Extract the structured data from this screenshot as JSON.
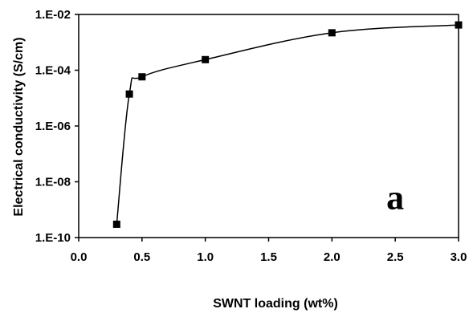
{
  "chart_data": {
    "type": "line",
    "title": "",
    "xlabel": "SWNT loading (wt%)",
    "ylabel": "Electrical conductivity (S/cm)",
    "xlim": [
      0.0,
      3.0
    ],
    "ylim": [
      1e-10,
      0.01
    ],
    "yscale": "log",
    "grid": false,
    "legend": "none",
    "xticks": [
      {
        "value": 0.0,
        "label": "0.0"
      },
      {
        "value": 0.5,
        "label": "0.5"
      },
      {
        "value": 1.0,
        "label": "1.0"
      },
      {
        "value": 1.5,
        "label": "1.5"
      },
      {
        "value": 2.0,
        "label": "2.0"
      },
      {
        "value": 2.5,
        "label": "2.5"
      },
      {
        "value": 3.0,
        "label": "3.0"
      }
    ],
    "yticks": [
      {
        "value": 1e-10,
        "label": "1.E-10"
      },
      {
        "value": 1e-08,
        "label": "1.E-08"
      },
      {
        "value": 1e-06,
        "label": "1.E-06"
      },
      {
        "value": 0.0001,
        "label": "1.E-04"
      },
      {
        "value": 0.01,
        "label": "1.E-02"
      }
    ],
    "series": [
      {
        "x": [
          0.3,
          0.4,
          0.5,
          1.0,
          2.0,
          3.0
        ],
        "y": [
          3e-10,
          1.4e-05,
          5.8e-05,
          0.00024,
          0.0022,
          0.0042
        ],
        "marker": "square",
        "color": "#000000"
      }
    ],
    "annotations": [
      {
        "text": "a",
        "x": 2.5,
        "y": 3e-09
      }
    ]
  }
}
